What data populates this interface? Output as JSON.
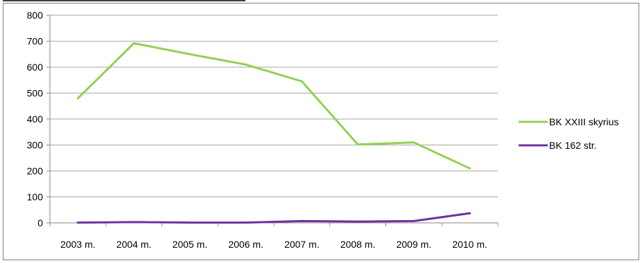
{
  "chart_data": {
    "type": "line",
    "title": "",
    "xlabel": "",
    "ylabel": "",
    "categories": [
      "2003 m.",
      "2004 m.",
      "2005 m.",
      "2006 m.",
      "2007 m.",
      "2008 m.",
      "2009 m.",
      "2010 m."
    ],
    "ylim": [
      0,
      800
    ],
    "yticks": [
      "0",
      "100",
      "200",
      "300",
      "400",
      "500",
      "600",
      "700",
      "800"
    ],
    "grid": "horizontal",
    "legend_position": "right",
    "series": [
      {
        "name": "BK XXIII skyrius",
        "color": "#92d050",
        "values": [
          480,
          692,
          650,
          610,
          545,
          302,
          310,
          210
        ]
      },
      {
        "name": "BK 162 str.",
        "color": "#7030a0",
        "values": [
          1,
          3,
          1,
          1,
          7,
          5,
          7,
          37
        ]
      }
    ]
  }
}
